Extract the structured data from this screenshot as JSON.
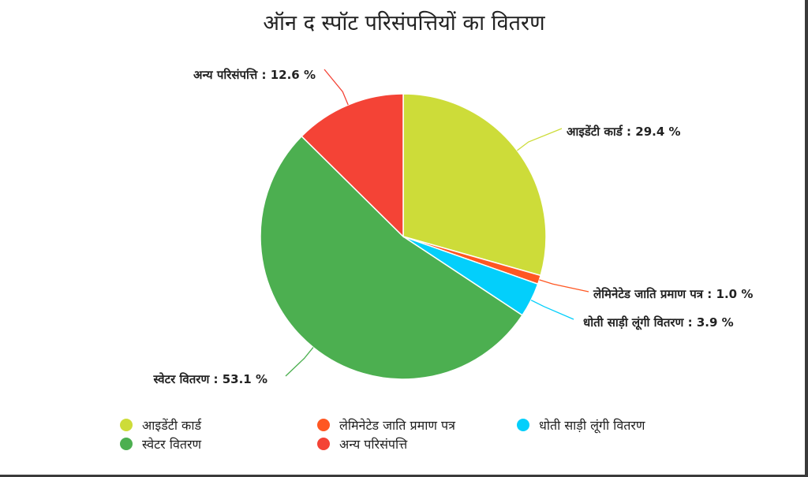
{
  "chart_data": {
    "type": "pie",
    "title": "ऑन द स्पॉट परिसंपत्तियों का वितरण",
    "slices": [
      {
        "label": "आइडेंटी कार्ड",
        "value": 29.4,
        "color": "#cddc39",
        "callout": "आइडेंटी कार्ड : 29.4 %"
      },
      {
        "label": "लेमिनेटेड जाति प्रमाण पत्र",
        "value": 1.0,
        "color": "#ff5722",
        "callout": "लेमिनेटेड जाति प्रमाण पत्र : 1.0 %"
      },
      {
        "label": "धोती साड़ी लूंगी वितरण",
        "value": 3.9,
        "color": "#03cffb",
        "callout": "धोती साड़ी लूंगी वितरण : 3.9 %"
      },
      {
        "label": "स्वेटर वितरण",
        "value": 53.1,
        "color": "#4caf50",
        "callout": "स्वेटर वितरण : 53.1 %"
      },
      {
        "label": "अन्य परिसंपत्ति",
        "value": 12.6,
        "color": "#f44336",
        "callout": "अन्य परिसंपत्ति : 12.6 %"
      }
    ],
    "legend_position": "bottom"
  }
}
